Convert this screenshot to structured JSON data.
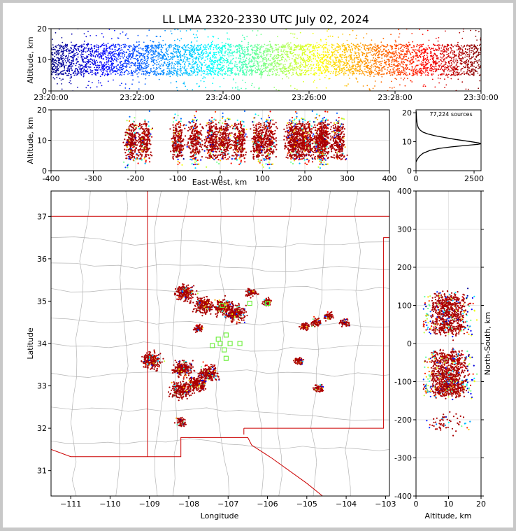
{
  "chart_data": [
    {
      "type": "scatter",
      "panel": "altitude-vs-time",
      "title": "LL LMA 2320-2330 UTC July 02, 2024",
      "xlabel": "",
      "ylabel": "Altitude, km",
      "xlim": [
        "23:20:00",
        "23:30:00"
      ],
      "ylim": [
        0,
        20
      ],
      "xticks": [
        "23:20:00",
        "23:22:00",
        "23:24:00",
        "23:26:00",
        "23:28:00",
        "23:30:00"
      ],
      "yticks": [
        0,
        10,
        20
      ],
      "colormap": "jet (time)",
      "source_altitude_core_km": [
        5,
        15
      ]
    },
    {
      "type": "scatter",
      "panel": "altitude-vs-east-west",
      "xlabel": "East-West, km",
      "ylabel": "Altitude, km",
      "xlim": [
        -400,
        400
      ],
      "ylim": [
        0,
        20
      ],
      "xticks": [
        -400,
        -300,
        -200,
        -100,
        0,
        100,
        200,
        300,
        400
      ],
      "yticks": [
        0,
        10,
        20
      ],
      "clusters_x_km": [
        -210,
        -180,
        -100,
        -60,
        -20,
        10,
        45,
        90,
        115,
        170,
        185,
        205,
        235,
        245,
        280
      ]
    },
    {
      "type": "line",
      "panel": "source-altitude-histogram",
      "annotation": "77,224 sources",
      "xlim": [
        0,
        2800
      ],
      "ylim": [
        0,
        21
      ],
      "xticks": [
        0,
        2500
      ],
      "yticks": [
        0,
        10,
        20
      ],
      "x": [
        0,
        60,
        150,
        300,
        600,
        1000,
        1500,
        2000,
        2400,
        2650,
        2800,
        2700,
        2300,
        1700,
        1200,
        800,
        500,
        300,
        180,
        100,
        50,
        20,
        5
      ],
      "y": [
        3,
        4,
        5,
        6,
        7,
        7.7,
        8.2,
        8.6,
        8.9,
        9.1,
        9.3,
        9.6,
        10.1,
        10.8,
        11.5,
        12.1,
        12.7,
        13.3,
        14,
        14.8,
        16,
        18,
        20.5
      ]
    },
    {
      "type": "scatter",
      "panel": "plan-view-map",
      "xlabel": "Longitude",
      "ylabel": "Latitude",
      "xlim": [
        -111.5,
        -102.9
      ],
      "ylim": [
        30.4,
        37.6
      ],
      "xticks": [
        -111,
        -110,
        -109,
        -108,
        -107,
        -106,
        -105,
        -104,
        -103
      ],
      "yticks": [
        31,
        32,
        33,
        34,
        35,
        36,
        37
      ],
      "storm_cells": [
        {
          "lon": -107.1,
          "lat": 34.85
        },
        {
          "lon": -107.6,
          "lat": 34.9
        },
        {
          "lon": -106.8,
          "lat": 34.7
        },
        {
          "lon": -108.1,
          "lat": 35.2
        },
        {
          "lon": -107.5,
          "lat": 33.3
        },
        {
          "lon": -107.8,
          "lat": 33.05
        },
        {
          "lon": -108.2,
          "lat": 32.9
        },
        {
          "lon": -108.15,
          "lat": 33.4
        },
        {
          "lon": -108.95,
          "lat": 33.6
        },
        {
          "lon": -107.75,
          "lat": 34.35
        },
        {
          "lon": -104.45,
          "lat": 34.65
        },
        {
          "lon": -104.05,
          "lat": 34.5
        },
        {
          "lon": -104.75,
          "lat": 34.5
        },
        {
          "lon": -105.05,
          "lat": 34.4
        },
        {
          "lon": -105.2,
          "lat": 33.58
        },
        {
          "lon": -104.7,
          "lat": 32.95
        },
        {
          "lon": -108.2,
          "lat": 32.15
        },
        {
          "lon": -106.0,
          "lat": 34.98
        },
        {
          "lon": -106.4,
          "lat": 35.2
        }
      ],
      "stations": [
        {
          "lon": -107.2,
          "lat": 34.0
        },
        {
          "lon": -107.05,
          "lat": 34.2
        },
        {
          "lon": -106.95,
          "lat": 34.0
        },
        {
          "lon": -107.1,
          "lat": 33.85
        },
        {
          "lon": -107.4,
          "lat": 33.95
        },
        {
          "lon": -107.25,
          "lat": 34.1
        },
        {
          "lon": -107.05,
          "lat": 33.65
        },
        {
          "lon": -106.7,
          "lat": 34.0
        },
        {
          "lon": -106.45,
          "lat": 34.95
        },
        {
          "lon": -106.0,
          "lat": 34.95
        },
        {
          "lon": -107.15,
          "lat": 34.9
        }
      ]
    },
    {
      "type": "scatter",
      "panel": "north-south-vs-altitude",
      "xlabel": "Altitude, km",
      "ylabel": "North-South, km",
      "xlim": [
        0,
        20
      ],
      "ylim": [
        -400,
        400
      ],
      "xticks": [
        0,
        10,
        20
      ],
      "yticks": [
        -400,
        -300,
        -200,
        -100,
        0,
        100,
        200,
        300,
        400
      ],
      "clusters_y_km": [
        110,
        80,
        45,
        -40,
        -75,
        -105,
        -120,
        -205
      ]
    }
  ],
  "colors": {
    "background": "#c8c8c8",
    "canvas": "#ffffff",
    "state_border": "#cc0000",
    "county_border": "#b4b4b4",
    "station_marker": "#66ee33",
    "core_red": "#aa0000"
  }
}
